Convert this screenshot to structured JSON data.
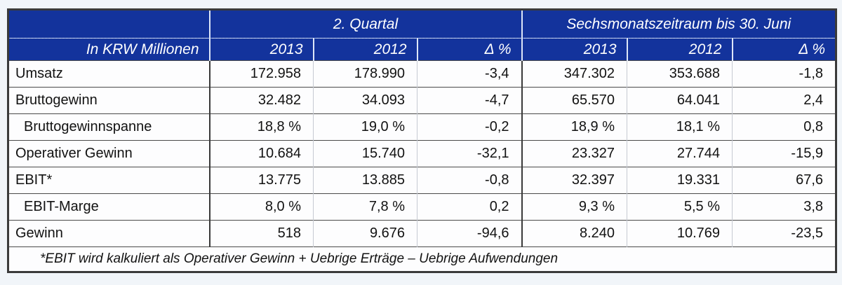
{
  "colors": {
    "header_bg": "#13339C",
    "header_text": "#FFFFFF",
    "border_dark": "#3A3A3A",
    "border_light": "#C6CAD2",
    "page_bg": "#F1F5F9"
  },
  "chart_data": {
    "type": "table",
    "title": "",
    "unit_label": "In KRW Millionen",
    "column_groups": [
      {
        "label": "2. Quartal",
        "columns": [
          "2013",
          "2012",
          "Δ %"
        ]
      },
      {
        "label": "Sechsmonatszeitraum bis 30. Juni",
        "columns": [
          "2013",
          "2012",
          "Δ %"
        ]
      }
    ],
    "rows": [
      {
        "label": "Umsatz",
        "indent": false,
        "values": [
          "172.958",
          "178.990",
          "-3,4",
          "347.302",
          "353.688",
          "-1,8"
        ]
      },
      {
        "label": "Bruttogewinn",
        "indent": false,
        "values": [
          "32.482",
          "34.093",
          "-4,7",
          "65.570",
          "64.041",
          "2,4"
        ]
      },
      {
        "label": "Bruttogewinnspanne",
        "indent": true,
        "values": [
          "18,8 %",
          "19,0 %",
          "-0,2",
          "18,9 %",
          "18,1 %",
          "0,8"
        ]
      },
      {
        "label": "Operativer Gewinn",
        "indent": false,
        "values": [
          "10.684",
          "15.740",
          "-32,1",
          "23.327",
          "27.744",
          "-15,9"
        ]
      },
      {
        "label": "EBIT*",
        "indent": false,
        "values": [
          "13.775",
          "13.885",
          "-0,8",
          "32.397",
          "19.331",
          "67,6"
        ]
      },
      {
        "label": "EBIT-Marge",
        "indent": true,
        "values": [
          "8,0 %",
          "7,8 %",
          "0,2",
          "9,3 %",
          "5,5 %",
          "3,8"
        ]
      },
      {
        "label": "Gewinn",
        "indent": false,
        "values": [
          "518",
          "9.676",
          "-94,6",
          "8.240",
          "10.769",
          "-23,5"
        ]
      }
    ],
    "footnote": "*EBIT wird kalkuliert als Operativer Gewinn + Uebrige Erträge – Uebrige Aufwendungen"
  }
}
